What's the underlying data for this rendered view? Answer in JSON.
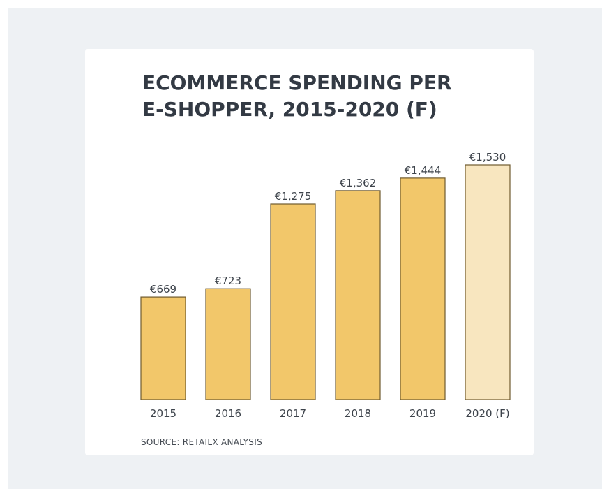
{
  "title_line1": "ECOMMERCE SPENDING PER",
  "title_line2": "E-SHOPPER, 2015-2020 (F)",
  "source": "SOURCE: RETAILX ANALYSIS",
  "colors": {
    "bar": "#f2c76a",
    "bar_forecast": "#f8e6bf",
    "bar_stroke": "#6f5a2e",
    "label": "#3d434b",
    "background": "#eef1f4",
    "card": "#ffffff"
  },
  "chart_data": {
    "type": "bar",
    "title": "ECOMMERCE SPENDING PER E-SHOPPER, 2015-2020 (F)",
    "categories": [
      "2015",
      "2016",
      "2017",
      "2018",
      "2019",
      "2020 (F)"
    ],
    "values": [
      669,
      723,
      1275,
      1362,
      1444,
      1530
    ],
    "value_labels": [
      "€669",
      "€723",
      "€1,275",
      "€1,362",
      "€1,444",
      "€1,530"
    ],
    "forecast": [
      false,
      false,
      false,
      false,
      false,
      true
    ],
    "xlabel": "",
    "ylabel": "",
    "ylim": [
      0,
      1530
    ],
    "grid": false,
    "legend": "none"
  }
}
